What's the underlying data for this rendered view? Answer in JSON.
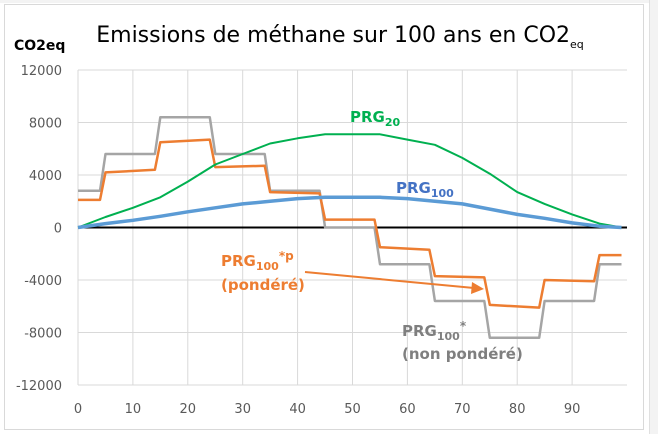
{
  "chart_data": {
    "type": "line",
    "title": "Emissions de méthane sur 100 ans en CO2",
    "title_subscript": "eq",
    "xlabel": "",
    "ylabel": "CO2eq",
    "xlim": [
      0,
      100
    ],
    "ylim": [
      -12000,
      12000
    ],
    "xticks": [
      "0",
      "10",
      "20",
      "30",
      "40",
      "50",
      "60",
      "70",
      "80",
      "90"
    ],
    "xtick_values": [
      0,
      10,
      20,
      30,
      40,
      50,
      60,
      70,
      80,
      90
    ],
    "yticks": [
      "12000",
      "8000",
      "4000",
      "0",
      "-4000",
      "-8000",
      "-12000"
    ],
    "ytick_values": [
      12000,
      8000,
      4000,
      0,
      -4000,
      -8000,
      -12000
    ],
    "grid": true,
    "series": [
      {
        "name": "PRG100* (non pondéré)",
        "color": "#a5a5a5",
        "x": [
          0,
          4,
          5,
          14,
          15,
          24,
          25,
          34,
          35,
          44,
          45,
          54,
          55,
          64,
          65,
          74,
          75,
          84,
          85,
          94,
          95,
          99
        ],
        "y": [
          2800,
          2800,
          5600,
          5600,
          8400,
          8400,
          5600,
          5600,
          2800,
          2800,
          0,
          0,
          -2800,
          -2800,
          -5600,
          -5600,
          -8400,
          -8400,
          -5600,
          -5600,
          -2800,
          -2800
        ]
      },
      {
        "name": "PRG100*p (pondéré)",
        "color": "#ed7d31",
        "x": [
          0,
          4,
          5,
          14,
          15,
          24,
          25,
          34,
          35,
          44,
          45,
          54,
          55,
          64,
          65,
          74,
          75,
          84,
          85,
          94,
          95,
          99
        ],
        "y": [
          2100,
          2100,
          4200,
          4400,
          6500,
          6700,
          4600,
          4700,
          2700,
          2600,
          600,
          600,
          -1500,
          -1700,
          -3700,
          -3800,
          -5900,
          -6100,
          -4000,
          -4100,
          -2100,
          -2100
        ]
      },
      {
        "name": "PRG20",
        "color": "#00b050",
        "x": [
          0,
          5,
          10,
          15,
          20,
          25,
          30,
          35,
          40,
          45,
          50,
          55,
          60,
          65,
          70,
          75,
          80,
          85,
          90,
          95,
          99
        ],
        "y": [
          0,
          800,
          1500,
          2300,
          3500,
          4800,
          5600,
          6400,
          6800,
          7100,
          7100,
          7100,
          6700,
          6300,
          5300,
          4100,
          2700,
          1800,
          1000,
          300,
          0
        ]
      },
      {
        "name": "PRG100",
        "color": "#5b9bd5",
        "x": [
          0,
          5,
          10,
          15,
          20,
          25,
          30,
          35,
          40,
          45,
          50,
          55,
          60,
          65,
          70,
          75,
          80,
          85,
          90,
          95,
          99
        ],
        "y": [
          0,
          300,
          550,
          850,
          1200,
          1500,
          1800,
          2000,
          2200,
          2300,
          2300,
          2300,
          2200,
          2000,
          1800,
          1400,
          1000,
          700,
          350,
          100,
          0
        ]
      }
    ],
    "annotations": [
      {
        "id": "prg20",
        "text": "PRG",
        "subscript": "20",
        "superscript": "",
        "line2": "",
        "color": "#00b050"
      },
      {
        "id": "prg100",
        "text": "PRG",
        "subscript": "100",
        "superscript": "",
        "line2": "",
        "color": "#4472c4"
      },
      {
        "id": "prg100p",
        "text": "PRG",
        "subscript": "100",
        "superscript": "*p",
        "line2": "(pondéré)",
        "color": "#ed7d31",
        "arrow_to_x": 74,
        "arrow_to_y": -3800
      },
      {
        "id": "prg100np",
        "text": "PRG",
        "subscript": "100",
        "superscript": "*",
        "line2": "(non pondéré)",
        "color": "#7f7f7f"
      }
    ]
  }
}
